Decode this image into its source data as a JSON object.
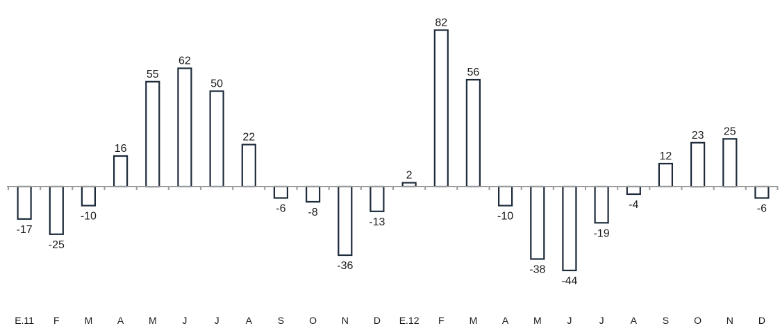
{
  "chart_data": {
    "type": "bar",
    "categories": [
      "E.11",
      "F",
      "M",
      "A",
      "M",
      "J",
      "J",
      "A",
      "S",
      "O",
      "N",
      "D",
      "E.12",
      "F",
      "M",
      "A",
      "M",
      "J",
      "J",
      "A",
      "S",
      "O",
      "N",
      "D"
    ],
    "values": [
      -17,
      -25,
      -10,
      16,
      55,
      62,
      50,
      22,
      -6,
      -8,
      -36,
      -13,
      2,
      82,
      56,
      -10,
      -38,
      -44,
      -19,
      -4,
      12,
      23,
      25,
      -6
    ],
    "data_labels": [
      "-17",
      "-25",
      "-10",
      "16",
      "55",
      "62",
      "50",
      "22",
      "-6",
      "-8",
      "-36",
      "-13",
      "2",
      "82",
      "56",
      "-10",
      "-38",
      "-44",
      "-19",
      "-4",
      "12",
      "23",
      "25",
      "-6"
    ],
    "ylim": [
      -50,
      90
    ],
    "grid": false,
    "legend": "none",
    "colors": {
      "bar_fill": "#ffffff",
      "bar_stroke": "#1c2a3a",
      "axis": "#9a9a9a"
    }
  }
}
